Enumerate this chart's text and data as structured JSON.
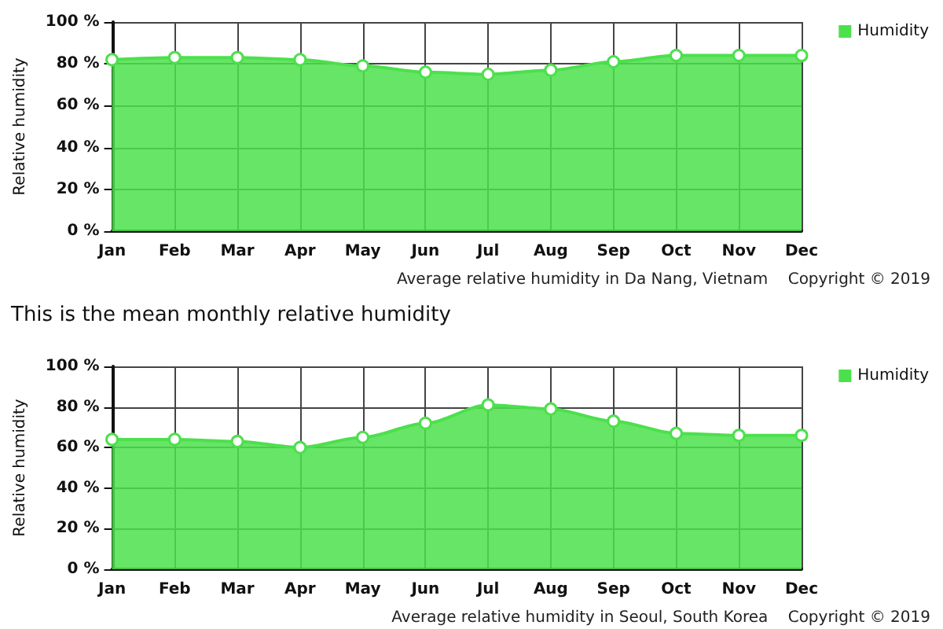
{
  "chart_data": [
    {
      "type": "area",
      "ylabel": "Relative humidity",
      "categories": [
        "Jan",
        "Feb",
        "Mar",
        "Apr",
        "May",
        "Jun",
        "Jul",
        "Aug",
        "Sep",
        "Oct",
        "Nov",
        "Dec"
      ],
      "series": [
        {
          "name": "Humidity",
          "color": "#4ce04c",
          "values": [
            82,
            83,
            83,
            82,
            79,
            76,
            75,
            77,
            81,
            84,
            84,
            84
          ]
        }
      ],
      "ylim": [
        0,
        100
      ],
      "yticks": [
        {
          "value": 0,
          "label": "0 %"
        },
        {
          "value": 20,
          "label": "20 %"
        },
        {
          "value": 40,
          "label": "40 %"
        },
        {
          "value": 60,
          "label": "60 %"
        },
        {
          "value": 80,
          "label": "80 %"
        },
        {
          "value": 100,
          "label": "100 %"
        }
      ],
      "grid": true,
      "legend": "top right",
      "marker": "circle",
      "annotations": [
        "Average relative humidity in Da Nang, Vietnam",
        "Copyright © 2019"
      ]
    },
    {
      "type": "area",
      "title": "This is the mean monthly relative humidity",
      "ylabel": "Relative humidity",
      "categories": [
        "Jan",
        "Feb",
        "Mar",
        "Apr",
        "May",
        "Jun",
        "Jul",
        "Aug",
        "Sep",
        "Oct",
        "Nov",
        "Dec"
      ],
      "series": [
        {
          "name": "Humidity",
          "color": "#4ce04c",
          "values": [
            64,
            64,
            63,
            60,
            65,
            72,
            81,
            79,
            73,
            67,
            66,
            66
          ]
        }
      ],
      "ylim": [
        0,
        100
      ],
      "yticks": [
        {
          "value": 0,
          "label": "0 %"
        },
        {
          "value": 20,
          "label": "20 %"
        },
        {
          "value": 40,
          "label": "40 %"
        },
        {
          "value": 60,
          "label": "60 %"
        },
        {
          "value": 80,
          "label": "80 %"
        },
        {
          "value": 100,
          "label": "100 %"
        }
      ],
      "grid": true,
      "legend": "top right",
      "marker": "circle",
      "annotations": [
        "Average relative humidity in Seoul, South Korea",
        "Copyright © 2019"
      ]
    }
  ]
}
